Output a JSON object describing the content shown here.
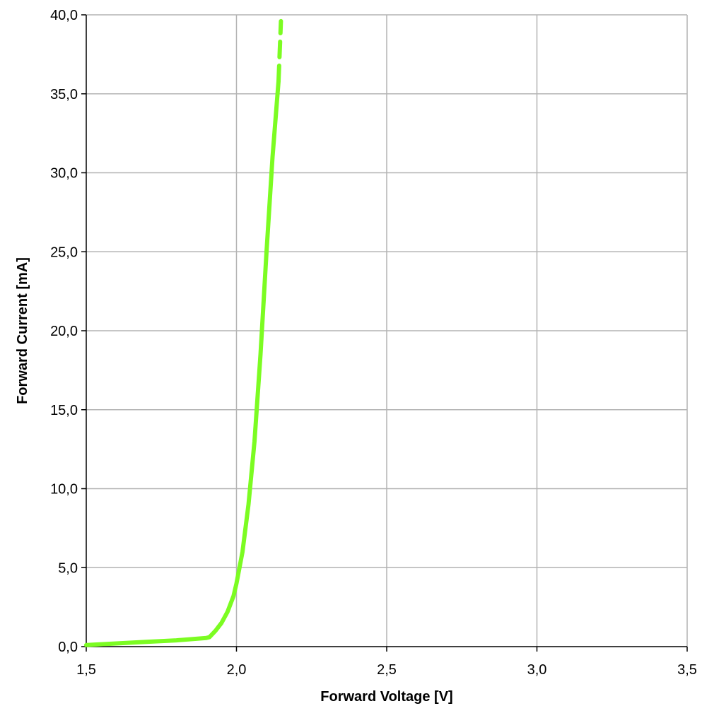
{
  "chart_data": {
    "type": "line",
    "xlabel": "Forward Voltage [V]",
    "ylabel": "Forward Current  [mA]",
    "xlim": [
      1.5,
      3.5
    ],
    "ylim": [
      0,
      40
    ],
    "x_ticks": [
      "1,5",
      "2,0",
      "2,5",
      "3,0",
      "3,5"
    ],
    "y_ticks": [
      "0,0",
      "5,0",
      "10,0",
      "15,0",
      "20,0",
      "25,0",
      "30,0",
      "35,0",
      "40,0"
    ],
    "grid": true,
    "colors": {
      "series": "#7CFC22",
      "grid": "#b3b3b3",
      "axis": "#000000"
    },
    "series": [
      {
        "line_style": "solid",
        "x": [
          1.5,
          1.6,
          1.7,
          1.8,
          1.9,
          1.91,
          1.93,
          1.95,
          1.97,
          1.99,
          2.0,
          2.02,
          2.04,
          2.06,
          2.08,
          2.1,
          2.12,
          2.14
        ],
        "y": [
          0.1,
          0.2,
          0.3,
          0.4,
          0.55,
          0.6,
          1.0,
          1.5,
          2.2,
          3.2,
          4.0,
          6.0,
          9.0,
          13.0,
          18.5,
          25.0,
          31.0,
          35.8
        ]
      },
      {
        "line_style": "dashed",
        "x": [
          2.14,
          2.148
        ],
        "y": [
          35.8,
          39.6
        ]
      }
    ]
  }
}
